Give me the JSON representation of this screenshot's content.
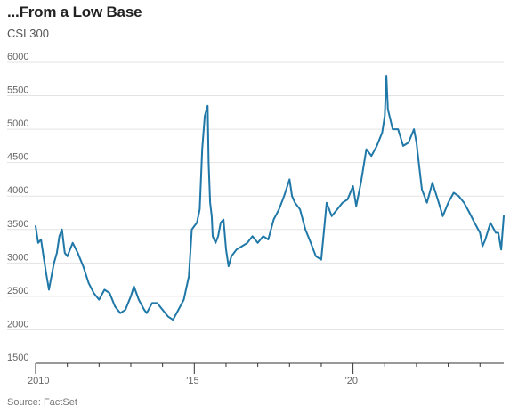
{
  "header": {
    "title": "...From a Low Base",
    "subtitle": "CSI 300"
  },
  "footer": {
    "source": "Source: FactSet"
  },
  "colors": {
    "line": "#1f78a8",
    "grid": "#e3e3e3",
    "axis": "#333333",
    "text": "#666666"
  },
  "chart_data": {
    "type": "line",
    "title": "...From a Low Base",
    "subtitle": "CSI 300",
    "xlabel": "",
    "ylabel": "",
    "xlim": [
      2010,
      2024.75
    ],
    "ylim": [
      1500,
      6000
    ],
    "y_ticks": [
      1500,
      2000,
      2500,
      3000,
      3500,
      4000,
      4500,
      5000,
      5500,
      6000
    ],
    "x_ticks": [
      {
        "value": 2010,
        "label": "2010"
      },
      {
        "value": 2015,
        "label": "'15"
      },
      {
        "value": 2020,
        "label": "'20"
      }
    ],
    "x_minor_ticks": [
      2011,
      2012,
      2013,
      2014,
      2016,
      2017,
      2018,
      2019,
      2021,
      2022,
      2023,
      2024
    ],
    "grid": true,
    "series": [
      {
        "x": [
          2010.0,
          2010.08,
          2010.17,
          2010.25,
          2010.33,
          2010.42,
          2010.5,
          2010.58,
          2010.67,
          2010.75,
          2010.83,
          2010.92,
          2011.0,
          2011.17,
          2011.33,
          2011.5,
          2011.67,
          2011.83,
          2012.0,
          2012.17,
          2012.33,
          2012.5,
          2012.67,
          2012.83,
          2013.0,
          2013.1,
          2013.25,
          2013.42,
          2013.5,
          2013.67,
          2013.83,
          2014.0,
          2014.17,
          2014.33,
          2014.5,
          2014.67,
          2014.83,
          2014.92,
          2015.0,
          2015.08,
          2015.17,
          2015.25,
          2015.33,
          2015.42,
          2015.45,
          2015.5,
          2015.55,
          2015.58,
          2015.67,
          2015.75,
          2015.83,
          2015.92,
          2016.0,
          2016.08,
          2016.17,
          2016.33,
          2016.5,
          2016.67,
          2016.83,
          2017.0,
          2017.17,
          2017.33,
          2017.5,
          2017.67,
          2017.83,
          2018.0,
          2018.08,
          2018.17,
          2018.33,
          2018.5,
          2018.67,
          2018.83,
          2019.0,
          2019.17,
          2019.33,
          2019.5,
          2019.67,
          2019.83,
          2020.0,
          2020.1,
          2020.25,
          2020.42,
          2020.58,
          2020.75,
          2020.92,
          2021.0,
          2021.05,
          2021.1,
          2021.25,
          2021.42,
          2021.58,
          2021.75,
          2021.92,
          2022.0,
          2022.17,
          2022.33,
          2022.5,
          2022.67,
          2022.83,
          2023.0,
          2023.17,
          2023.33,
          2023.5,
          2023.67,
          2023.83,
          2024.0,
          2024.08,
          2024.17,
          2024.33,
          2024.5,
          2024.58,
          2024.67,
          2024.75
        ],
        "values": [
          3550,
          3300,
          3350,
          3100,
          2850,
          2600,
          2800,
          3000,
          3150,
          3400,
          3500,
          3150,
          3100,
          3300,
          3150,
          2950,
          2700,
          2550,
          2450,
          2600,
          2550,
          2350,
          2250,
          2300,
          2500,
          2650,
          2450,
          2300,
          2250,
          2400,
          2400,
          2300,
          2200,
          2150,
          2300,
          2450,
          2800,
          3500,
          3550,
          3600,
          3800,
          4700,
          5200,
          5350,
          4500,
          3900,
          3700,
          3400,
          3300,
          3400,
          3600,
          3650,
          3200,
          2950,
          3100,
          3200,
          3250,
          3300,
          3400,
          3300,
          3400,
          3350,
          3650,
          3800,
          4000,
          4250,
          4000,
          3900,
          3800,
          3500,
          3300,
          3100,
          3050,
          3900,
          3700,
          3800,
          3900,
          3950,
          4150,
          3850,
          4200,
          4700,
          4600,
          4750,
          4950,
          5200,
          5800,
          5300,
          5000,
          5000,
          4750,
          4800,
          5000,
          4800,
          4100,
          3900,
          4200,
          3950,
          3700,
          3900,
          4050,
          4000,
          3900,
          3750,
          3600,
          3450,
          3250,
          3350,
          3600,
          3450,
          3450,
          3200,
          3700
        ]
      }
    ]
  }
}
